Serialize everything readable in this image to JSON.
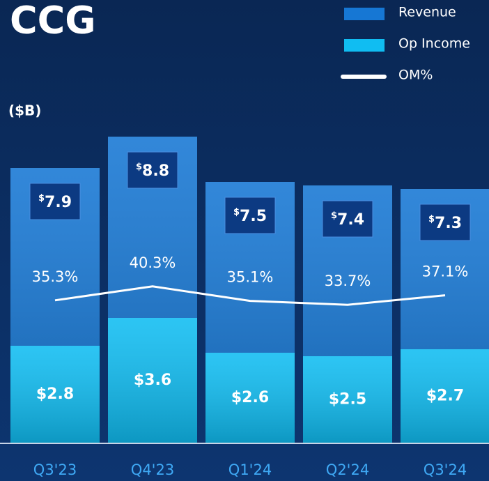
{
  "chart_data": {
    "type": "bar",
    "title": "CCG",
    "unit_label": "($B)",
    "categories": [
      "Q3'23",
      "Q4'23",
      "Q1'24",
      "Q2'24",
      "Q3'24"
    ],
    "series": [
      {
        "name": "Revenue",
        "color": "#1677d4",
        "values": [
          7.9,
          8.8,
          7.5,
          7.4,
          7.3
        ],
        "value_labels": [
          "$7.9",
          "$8.8",
          "$7.5",
          "$7.4",
          "$7.3"
        ]
      },
      {
        "name": "Op Income",
        "color": "#10bdf2",
        "values": [
          2.8,
          3.6,
          2.6,
          2.5,
          2.7
        ],
        "value_labels": [
          "$2.8",
          "$3.6",
          "$2.6",
          "$2.5",
          "$2.7"
        ]
      },
      {
        "name": "OM%",
        "color": "#ffffff",
        "axis": "y2",
        "values": [
          35.3,
          40.3,
          35.1,
          33.7,
          37.1
        ],
        "value_labels": [
          "35.3%",
          "40.3%",
          "35.1%",
          "33.7%",
          "37.1%"
        ]
      }
    ],
    "ylim": [
      0,
      9
    ],
    "y2lim": [
      -16,
      96.5
    ],
    "legend": "top-right"
  }
}
